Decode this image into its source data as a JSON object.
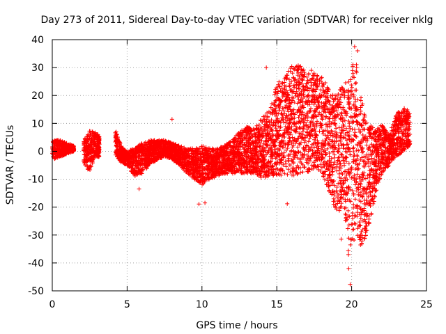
{
  "chart_data": {
    "type": "scatter",
    "title": "Day 273 of 2011, Sidereal Day-to-day VTEC variation (SDTVAR) for receiver nklg",
    "xlabel": "GPS time / hours",
    "ylabel": "SDTVAR / TECUs",
    "xlim": [
      0,
      25
    ],
    "ylim": [
      -50,
      40
    ],
    "xticks": [
      0,
      5,
      10,
      15,
      20,
      25
    ],
    "yticks": [
      -50,
      -40,
      -30,
      -20,
      -10,
      0,
      10,
      20,
      30,
      40
    ],
    "grid": true,
    "marker": "+",
    "color": "#ff0000",
    "series": [
      {
        "name": "SDTVAR",
        "bands": [
          [
            0.0,
            -3,
            4
          ],
          [
            0.5,
            -2,
            4
          ],
          [
            1.0,
            -1,
            3
          ],
          [
            1.4,
            0,
            2
          ],
          [
            2.1,
            -4,
            4
          ],
          [
            2.5,
            -8,
            8
          ],
          [
            2.8,
            -2,
            7
          ],
          [
            3.1,
            -2,
            6
          ],
          [
            4.2,
            -1,
            8
          ],
          [
            4.6,
            -4,
            2
          ],
          [
            5.0,
            -5,
            0
          ],
          [
            5.5,
            -9,
            1
          ],
          [
            6.0,
            -8,
            3
          ],
          [
            6.5,
            -5,
            4
          ],
          [
            7.0,
            -3,
            4
          ],
          [
            7.5,
            -2,
            4
          ],
          [
            8.0,
            -3,
            3
          ],
          [
            8.5,
            -5,
            2
          ],
          [
            9.0,
            -8,
            1
          ],
          [
            9.5,
            -10,
            1
          ],
          [
            10.0,
            -12,
            2
          ],
          [
            10.5,
            -10,
            1
          ],
          [
            11.0,
            -9,
            1
          ],
          [
            11.5,
            -8,
            2
          ],
          [
            12.0,
            -8,
            4
          ],
          [
            12.5,
            -8,
            7
          ],
          [
            13.0,
            -8,
            9
          ],
          [
            13.5,
            -8,
            8
          ],
          [
            14.0,
            -10,
            12
          ],
          [
            14.5,
            -9,
            15
          ],
          [
            15.0,
            -9,
            24
          ],
          [
            15.5,
            -9,
            27
          ],
          [
            16.0,
            -9,
            31
          ],
          [
            16.5,
            -8,
            31
          ],
          [
            17.0,
            -8,
            28
          ],
          [
            17.5,
            -6,
            28
          ],
          [
            18.0,
            -8,
            27
          ],
          [
            18.5,
            -15,
            22
          ],
          [
            19.0,
            -22,
            20
          ],
          [
            19.5,
            -20,
            26
          ],
          [
            19.8,
            -38,
            28
          ],
          [
            20.0,
            -40,
            32
          ],
          [
            20.3,
            -30,
            33
          ],
          [
            20.5,
            -35,
            22
          ],
          [
            21.0,
            -30,
            12
          ],
          [
            21.5,
            -18,
            8
          ],
          [
            22.0,
            -8,
            10
          ],
          [
            22.5,
            -5,
            6
          ],
          [
            23.0,
            -2,
            14
          ],
          [
            23.5,
            0,
            16
          ],
          [
            23.9,
            2,
            14
          ]
        ],
        "outliers": [
          [
            8.0,
            11.5
          ],
          [
            5.8,
            -13.5
          ],
          [
            9.8,
            -18.9
          ],
          [
            10.2,
            -18.5
          ],
          [
            15.7,
            -18.8
          ],
          [
            19.3,
            -31.5
          ],
          [
            19.8,
            -42
          ],
          [
            19.9,
            -47.7
          ],
          [
            20.2,
            37.5
          ],
          [
            20.4,
            36
          ],
          [
            14.3,
            30
          ],
          [
            17.3,
            29
          ]
        ]
      }
    ]
  }
}
